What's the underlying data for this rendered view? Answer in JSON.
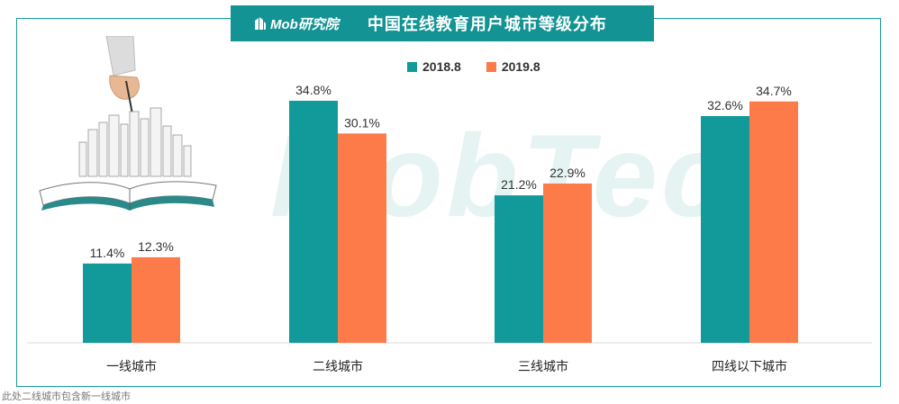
{
  "header": {
    "logo_text": "Mob研究院",
    "title": "中国在线教育用户城市等级分布"
  },
  "watermark": "MobTech",
  "footnote": "此处二线城市包含新一线城市",
  "colors": {
    "teal": "#12999a",
    "orange": "#fd7b48",
    "axis": "#d9d9d9",
    "label": "#333333"
  },
  "chart_data": {
    "type": "bar",
    "title": "中国在线教育用户城市等级分布",
    "categories": [
      "一线城市",
      "二线城市",
      "三线城市",
      "四线以下城市"
    ],
    "series": [
      {
        "name": "2018.8",
        "values": [
          11.4,
          34.8,
          21.2,
          32.6
        ],
        "labels": [
          "11.4%",
          "34.8%",
          "21.2%",
          "32.6%"
        ]
      },
      {
        "name": "2019.8",
        "values": [
          12.3,
          30.1,
          22.9,
          34.7
        ],
        "labels": [
          "12.3%",
          "30.1%",
          "22.9%",
          "34.7%"
        ]
      }
    ],
    "ylim": [
      0,
      35
    ],
    "unit": "%",
    "legend": "top-center",
    "grid": false
  }
}
